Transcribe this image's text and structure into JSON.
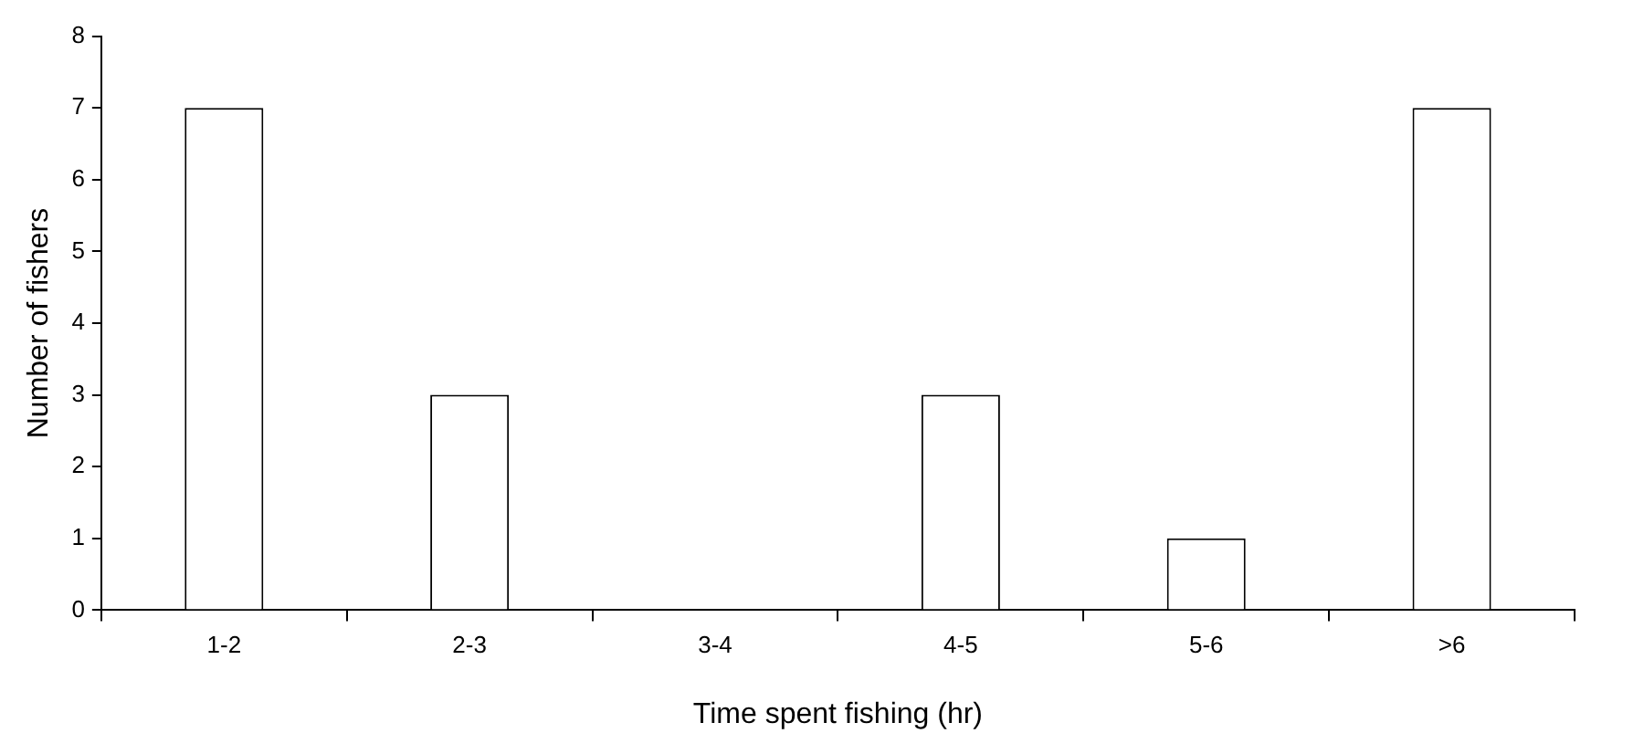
{
  "chart_data": {
    "type": "bar",
    "xlabel": "Time spent fishing (hr)",
    "ylabel": "Number of fishers",
    "categories": [
      "1-2",
      "2-3",
      "3-4",
      "4-5",
      "5-6",
      ">6"
    ],
    "values": [
      7,
      3,
      0,
      3,
      1,
      7
    ],
    "color": "#ffffff",
    "ylim": [
      0,
      8
    ],
    "yticks": [
      0,
      1,
      2,
      3,
      4,
      5,
      6,
      7,
      8
    ],
    "grid": false,
    "legend": false
  }
}
